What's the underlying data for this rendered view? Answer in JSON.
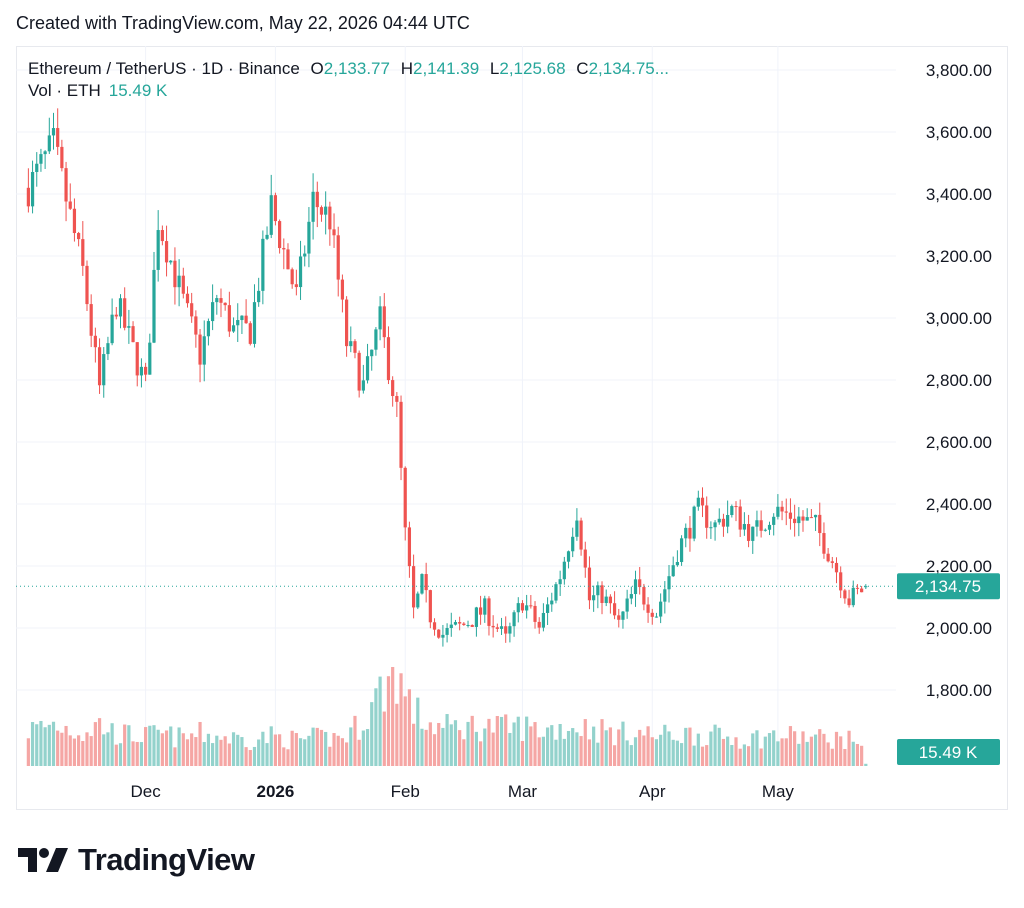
{
  "header": {
    "caption": "Created with TradingView.com, May 22, 2026 04:44 UTC"
  },
  "legend": {
    "symbol": "Ethereum / TetherUS · 1D · Binance",
    "open_label": "O",
    "open": "2,133.77",
    "high_label": "H",
    "high": "2,141.39",
    "low_label": "L",
    "low": "2,125.68",
    "close_label": "C",
    "close": "2,134.75...",
    "volume_label": "Vol · ETH",
    "volume": "15.49 K"
  },
  "brand": {
    "name": "TradingView",
    "icon": "tradingview-logo-icon"
  },
  "colors": {
    "up": "#26a69a",
    "down": "#ef5350",
    "up_volume": "#93d2cc",
    "down_volume": "#f5a6a4",
    "grid": "#f0f3fa",
    "text": "#131722"
  },
  "chart_data": {
    "type": "candlestick",
    "title": "Ethereum / TetherUS · 1D · Binance",
    "ylim": [
      1700,
      3900
    ],
    "y_ticks": [
      "3,800.00",
      "3,600.00",
      "3,400.00",
      "3,200.00",
      "3,000.00",
      "2,800.00",
      "2,600.00",
      "2,400.00",
      "2,200.00",
      "2,000.00",
      "1,800.00"
    ],
    "y_tick_values": [
      3800,
      3600,
      3400,
      3200,
      3000,
      2800,
      2600,
      2400,
      2200,
      2000,
      1800
    ],
    "x_ticks": [
      {
        "label": "Dec",
        "date": "2025-12-01",
        "bold": false
      },
      {
        "label": "2026",
        "date": "2026-01-01",
        "bold": true
      },
      {
        "label": "Feb",
        "date": "2026-02-01",
        "bold": false
      },
      {
        "label": "Mar",
        "date": "2026-03-01",
        "bold": false
      },
      {
        "label": "Apr",
        "date": "2026-04-01",
        "bold": false
      },
      {
        "label": "May",
        "date": "2026-05-01",
        "bold": false
      }
    ],
    "last_price": "2,134.75",
    "last_price_value": 2134.75,
    "last_volume": "15.49 K",
    "series": {
      "x": [
        "2025-11-03",
        "2025-11-09",
        "2025-11-16",
        "2025-11-20",
        "2025-11-24",
        "2025-12-01",
        "2025-12-04",
        "2025-12-10",
        "2025-12-14",
        "2025-12-18",
        "2025-12-22",
        "2025-12-26",
        "2025-12-31",
        "2026-01-06",
        "2026-01-10",
        "2026-01-14",
        "2026-01-18",
        "2026-01-22",
        "2026-01-26",
        "2026-01-30",
        "2026-02-01",
        "2026-02-03",
        "2026-02-05",
        "2026-02-07",
        "2026-02-10",
        "2026-02-15",
        "2026-02-20",
        "2026-02-25",
        "2026-03-01",
        "2026-03-05",
        "2026-03-10",
        "2026-03-14",
        "2026-03-17",
        "2026-03-20",
        "2026-03-24",
        "2026-03-28",
        "2026-04-02",
        "2026-04-07",
        "2026-04-12",
        "2026-04-16",
        "2026-04-20",
        "2026-04-25",
        "2026-04-30",
        "2026-05-05",
        "2026-05-10",
        "2026-05-14",
        "2026-05-18",
        "2026-05-22"
      ],
      "close": [
        3420,
        3560,
        3150,
        2770,
        3050,
        2780,
        3320,
        3050,
        2880,
        3070,
        2960,
        2960,
        3360,
        3070,
        3380,
        3320,
        2920,
        2780,
        2990,
        2700,
        2300,
        2050,
        2140,
        2040,
        1980,
        2010,
        2060,
        1960,
        2090,
        2000,
        2170,
        2380,
        2090,
        2110,
        2010,
        2130,
        2050,
        2250,
        2380,
        2330,
        2380,
        2300,
        2380,
        2360,
        2330,
        2220,
        2090,
        2134.75
      ],
      "volume": [
        900,
        1050,
        850,
        1050,
        800,
        750,
        800,
        700,
        800,
        750,
        700,
        650,
        750,
        650,
        700,
        700,
        750,
        1150,
        1850,
        2400,
        1750,
        1400,
        1150,
        1050,
        950,
        1000,
        1000,
        950,
        1000,
        900,
        950,
        1000,
        950,
        900,
        800,
        850,
        750,
        800,
        800,
        750,
        700,
        700,
        750,
        750,
        700,
        700,
        650,
        15.49
      ]
    }
  }
}
